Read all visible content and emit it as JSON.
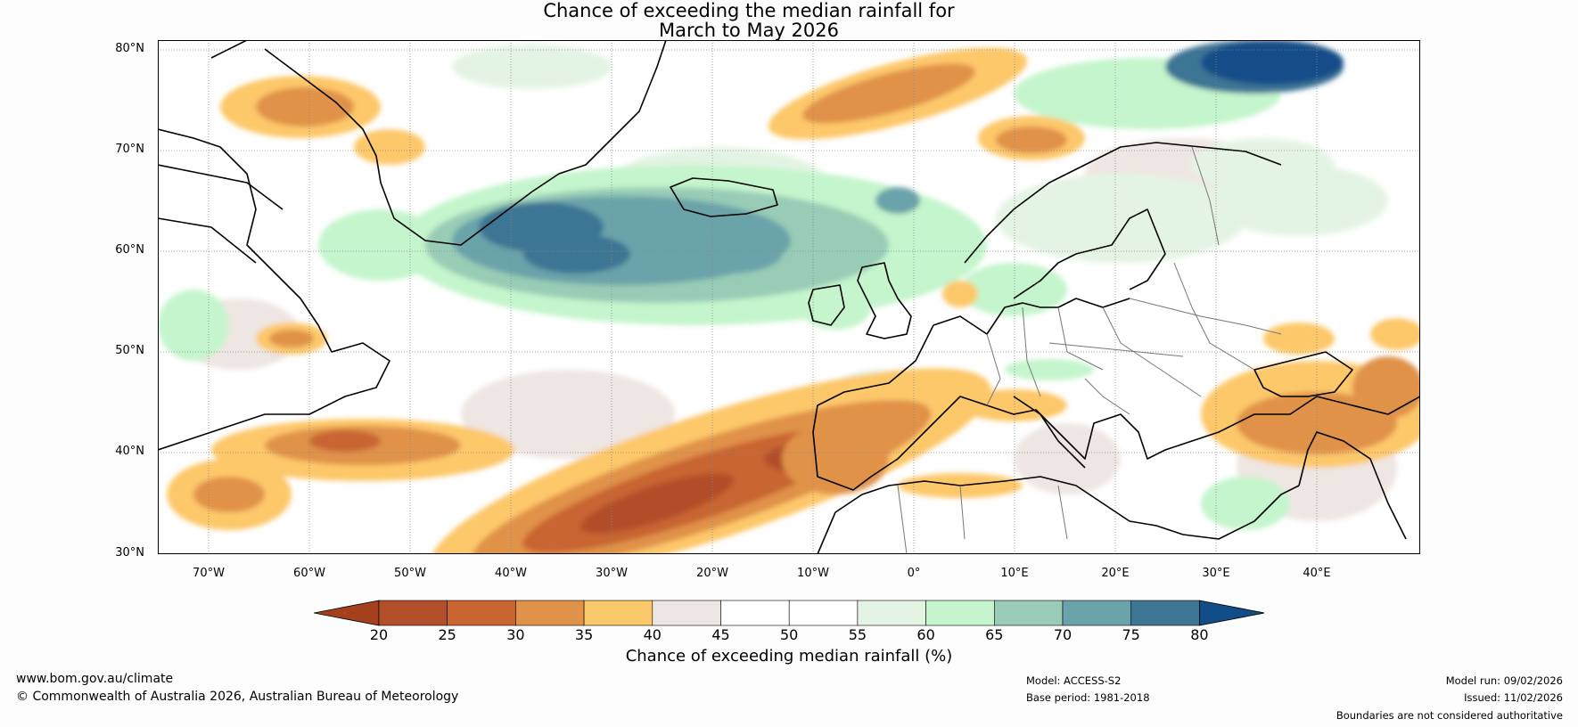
{
  "title": {
    "line1": "Chance of exceeding the median rainfall for",
    "line2": "March to May 2026"
  },
  "axes": {
    "lat_labels": [
      "80°N",
      "70°N",
      "60°N",
      "50°N",
      "40°N",
      "30°N"
    ],
    "lon_labels": [
      "70°W",
      "60°W",
      "50°W",
      "40°W",
      "30°W",
      "20°W",
      "10°W",
      "0°",
      "10°E",
      "20°E",
      "30°E",
      "40°E"
    ],
    "lon_range": [
      -75,
      50
    ],
    "lat_range": [
      30,
      81
    ]
  },
  "colorbar": {
    "ticks": [
      "20",
      "25",
      "30",
      "35",
      "40",
      "45",
      "50",
      "55",
      "60",
      "65",
      "70",
      "75",
      "80"
    ],
    "colors": [
      "#a5401c",
      "#b24e2a",
      "#c86530",
      "#e0924a",
      "#fdc86b",
      "#eee6e2",
      "#ffffff",
      "#ffffff",
      "#e4f4e4",
      "#c4f5cc",
      "#98ccb6",
      "#6aa3a9",
      "#3e7494",
      "#124d88"
    ],
    "label": "Chance of exceeding median rainfall (%)"
  },
  "footer": {
    "website": "www.bom.gov.au/climate",
    "copyright": "© Commonwealth of Australia 2026, Australian Bureau of Meteorology",
    "model": "Model: ACCESS-S2",
    "base_period": "Base period: 1981-2018",
    "model_run": "Model run: 09/02/2026",
    "issued": "Issued: 11/02/2026",
    "disclaimer": "Boundaries are not considered authoritative"
  }
}
